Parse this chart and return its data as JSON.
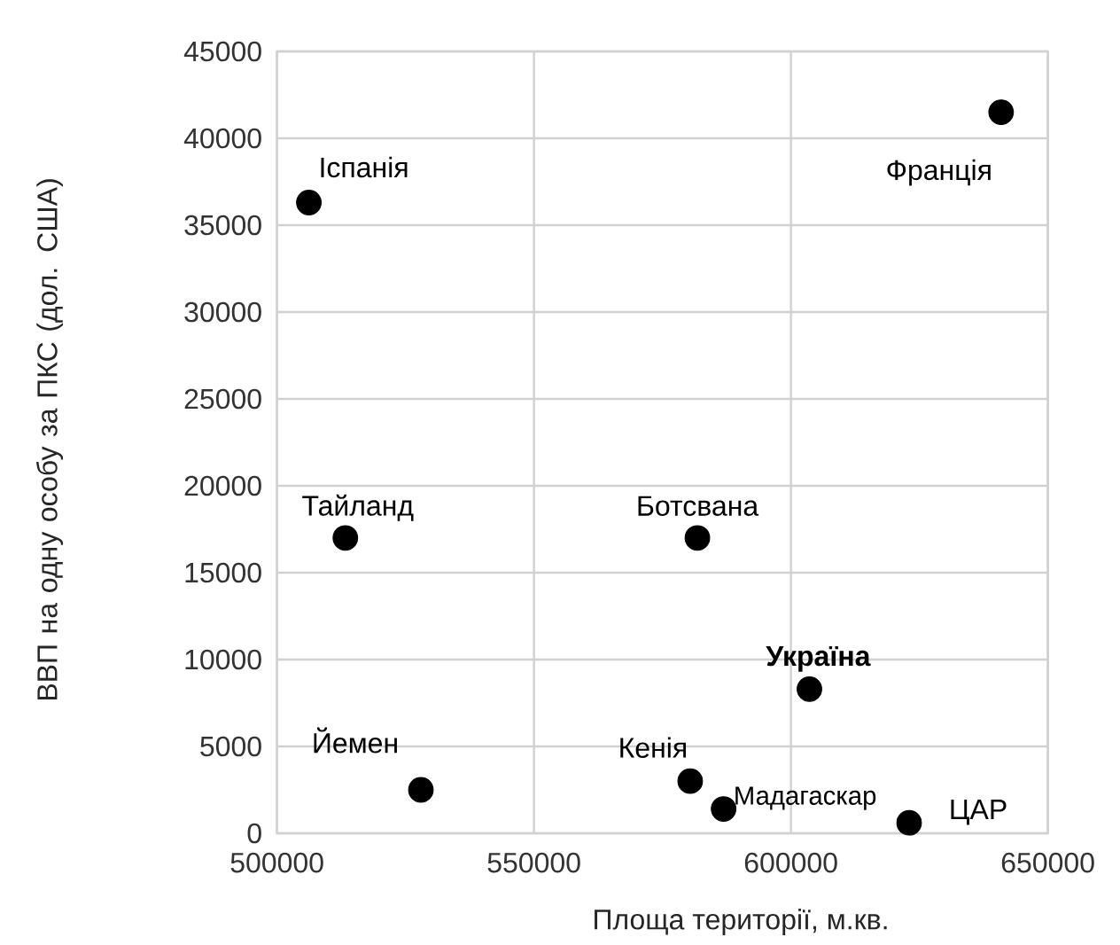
{
  "chart_data": {
    "type": "scatter",
    "xlabel": "Площа території, м.кв.",
    "ylabel": "ВВП на одну особу за ПКС (дол. США)",
    "series": [
      {
        "color": "#000000",
        "x": [
          506200,
          640900,
          513300,
          581800,
          603600,
          528000,
          580400,
          586900,
          623000
        ],
        "values": [
          36300,
          41500,
          17000,
          17000,
          8300,
          2500,
          3000,
          1400,
          600
        ]
      }
    ],
    "annotations": [
      {
        "text": "Іспанія",
        "x": 506200,
        "y": 36300
      },
      {
        "text": "Франція",
        "x": 640900,
        "y": 41500
      },
      {
        "text": "Тайланд",
        "x": 513300,
        "y": 17000
      },
      {
        "text": "Ботсвана",
        "x": 581800,
        "y": 17000
      },
      {
        "text": "**Україна**",
        "x": 603600,
        "y": 8300
      },
      {
        "text": "Йемен",
        "x": 528000,
        "y": 2500
      },
      {
        "text": "Кенія",
        "x": 580400,
        "y": 3000
      },
      {
        "text": "Мадагаскар",
        "x": 586900,
        "y": 1400
      },
      {
        "text": "ЦАР",
        "x": 623000,
        "y": 600
      }
    ],
    "marker": "circle",
    "grid": true,
    "xlim": [
      500000,
      650000
    ],
    "xticks": [
      500000,
      550000,
      600000,
      650000
    ],
    "ylim": [
      0,
      45000
    ],
    "yticks": [
      0,
      5000,
      10000,
      15000,
      20000,
      25000,
      30000,
      35000,
      40000,
      45000
    ]
  }
}
